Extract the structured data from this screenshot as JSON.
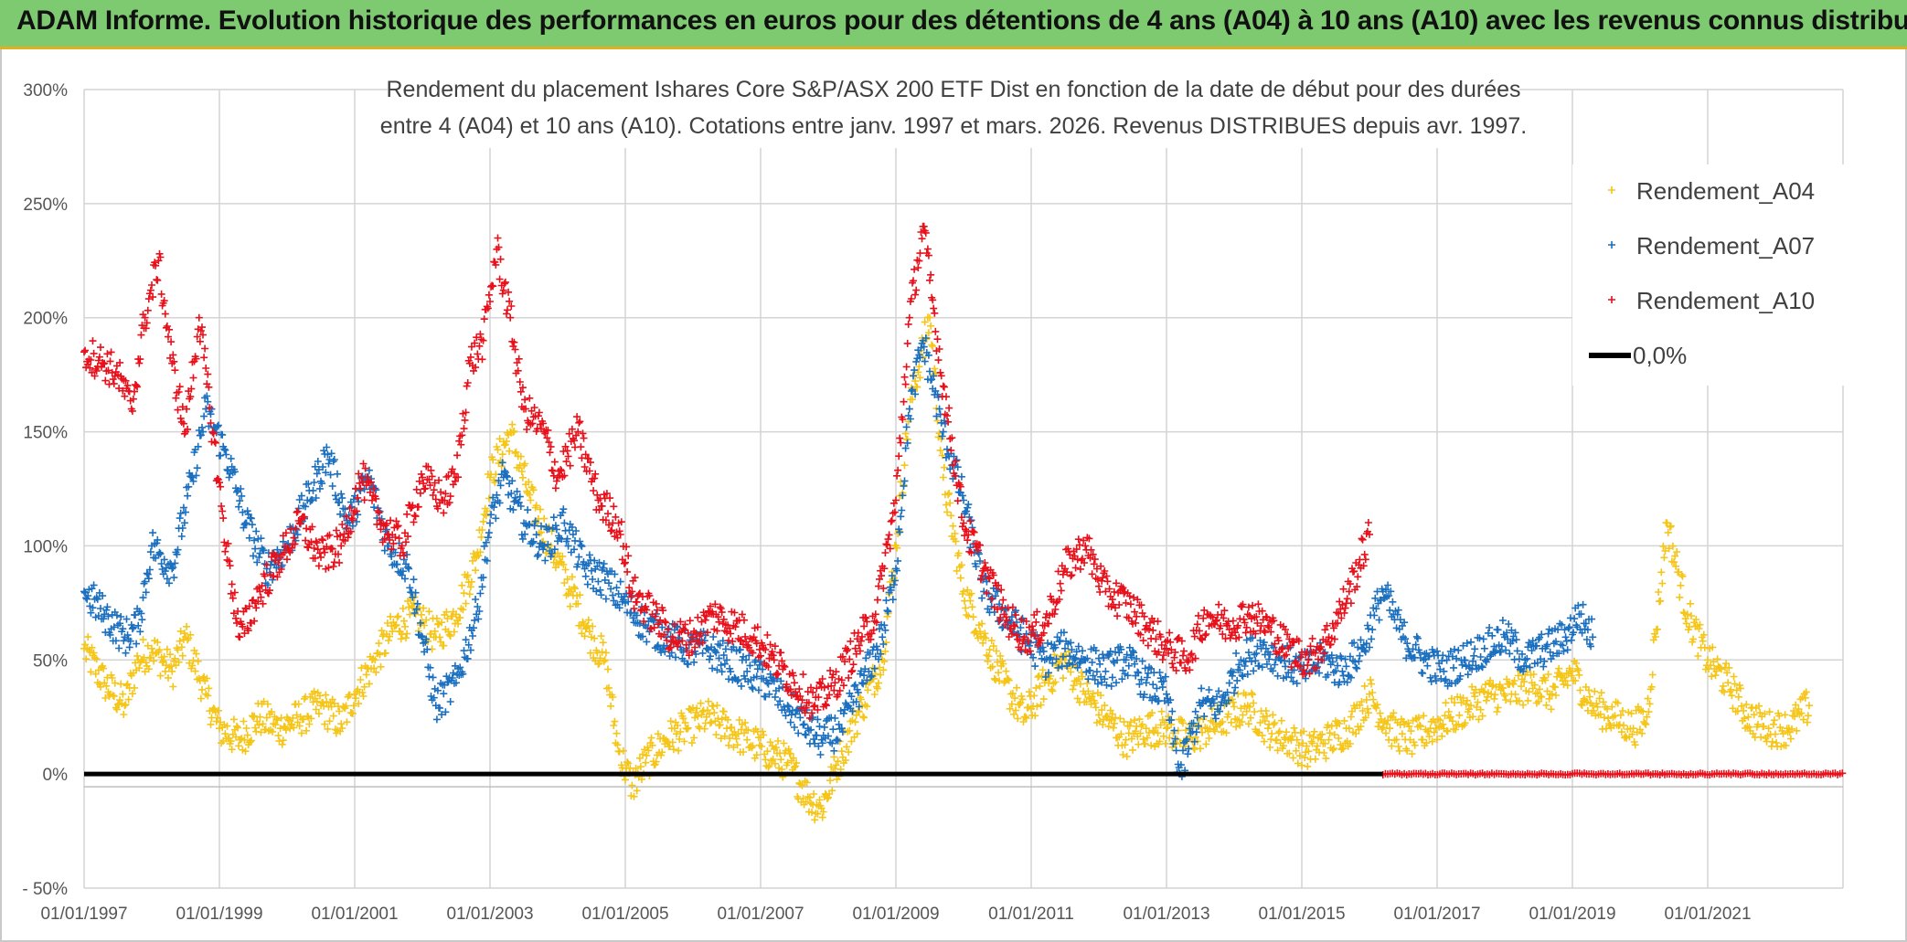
{
  "header": {
    "title": "ADAM Informe. Evolution historique des performances en euros pour des détentions de 4 ans (A04) à 10 ans (A10) avec les revenus connus distribués"
  },
  "chart_data": {
    "type": "scatter",
    "title_lines": [
      "Rendement du placement Ishares Core S&P/ASX 200 ETF Dist en fonction de la date de début pour des durées",
      "entre 4 (A04) et 10 ans (A10). Cotations entre janv. 1997 et mars. 2026. Revenus DISTRIBUES depuis avr. 1997."
    ],
    "x_unit": "start date (decimal year)",
    "xlim": [
      1997.0,
      2023.0
    ],
    "x_ticks": [
      1997,
      1999,
      2001,
      2003,
      2005,
      2007,
      2009,
      2011,
      2013,
      2015,
      2017,
      2019,
      2021
    ],
    "x_tick_labels": [
      "01/01/1997",
      "01/01/1999",
      "01/01/2001",
      "01/01/2003",
      "01/01/2005",
      "01/01/2007",
      "01/01/2009",
      "01/01/2011",
      "01/01/2013",
      "01/01/2015",
      "01/01/2017",
      "01/01/2019",
      "01/01/2021"
    ],
    "ylim": [
      -50,
      300
    ],
    "y_ticks": [
      -50,
      0,
      50,
      100,
      150,
      200,
      250,
      300
    ],
    "y_tick_labels": [
      "- 50%",
      "0%",
      "50%",
      "100%",
      "150%",
      "200%",
      "250%",
      "300%"
    ],
    "grid": true,
    "legend_position": "top-right",
    "legend": [
      "Rendement_A04",
      "Rendement_A07",
      "Rendement_A10",
      "0,0%"
    ],
    "series": [
      {
        "name": "Rendement_A04",
        "color": "#f5c518",
        "marker": "plus",
        "x": [
          1997.0,
          1997.3,
          1997.6,
          1997.8,
          1998.0,
          1998.3,
          1998.5,
          1998.8,
          1999.0,
          1999.3,
          1999.6,
          1999.9,
          2000.2,
          2000.5,
          2000.8,
          2001.0,
          2001.3,
          2001.6,
          2001.9,
          2002.2,
          2002.5,
          2002.8,
          2003.0,
          2003.3,
          2003.6,
          2003.9,
          2004.2,
          2004.5,
          2004.7,
          2004.9,
          2005.1,
          2005.3,
          2005.6,
          2005.9,
          2006.2,
          2006.5,
          2006.8,
          2007.1,
          2007.4,
          2007.7,
          2007.9,
          2008.2,
          2008.5,
          2008.8,
          2009.0,
          2009.2,
          2009.5,
          2009.7,
          2010.0,
          2010.3,
          2010.6,
          2010.9,
          2011.2,
          2011.5,
          2011.8,
          2012.1,
          2012.4,
          2012.7,
          2013.0,
          2013.3,
          2013.6,
          2013.9,
          2014.2,
          2014.5,
          2014.8,
          2015.1,
          2015.4,
          2015.7,
          2016.0,
          2016.3,
          2016.6,
          2016.9,
          2017.2,
          2017.5,
          2017.8,
          2018.1,
          2018.4,
          2018.7,
          2019.0,
          2019.3,
          2019.6,
          2019.9,
          2020.1,
          2020.4,
          2020.7,
          2021.0,
          2021.3,
          2021.6,
          2021.9,
          2022.2,
          2022.5
        ],
        "y": [
          55,
          40,
          30,
          50,
          55,
          45,
          60,
          35,
          20,
          15,
          25,
          20,
          25,
          30,
          22,
          35,
          50,
          65,
          70,
          60,
          70,
          95,
          130,
          150,
          120,
          100,
          80,
          60,
          50,
          10,
          -5,
          5,
          15,
          20,
          25,
          20,
          15,
          10,
          5,
          -10,
          -15,
          10,
          30,
          50,
          100,
          160,
          200,
          130,
          80,
          60,
          40,
          25,
          40,
          50,
          35,
          25,
          15,
          20,
          20,
          15,
          20,
          25,
          30,
          20,
          15,
          10,
          15,
          20,
          35,
          20,
          15,
          20,
          25,
          30,
          35,
          35,
          40,
          35,
          45,
          30,
          25,
          20,
          25,
          110,
          70,
          50,
          40,
          25,
          20,
          20,
          30
        ]
      },
      {
        "name": "Rendement_A07",
        "color": "#1b6fbf",
        "marker": "plus",
        "x": [
          1997.0,
          1997.3,
          1997.6,
          1997.8,
          1998.0,
          1998.3,
          1998.6,
          1998.8,
          1999.1,
          1999.4,
          1999.7,
          2000.0,
          2000.3,
          2000.6,
          2000.9,
          2001.2,
          2001.5,
          2001.8,
          2002.0,
          2002.2,
          2002.5,
          2002.8,
          2003.0,
          2003.2,
          2003.5,
          2003.8,
          2004.1,
          2004.4,
          2004.7,
          2005.0,
          2005.3,
          2005.6,
          2005.9,
          2006.2,
          2006.5,
          2006.8,
          2007.1,
          2007.4,
          2007.7,
          2007.9,
          2008.2,
          2008.5,
          2008.8,
          2009.0,
          2009.2,
          2009.4,
          2009.7,
          2010.0,
          2010.3,
          2010.6,
          2010.9,
          2011.2,
          2011.5,
          2011.8,
          2012.1,
          2012.4,
          2012.7,
          2013.0,
          2013.2,
          2013.5,
          2013.8,
          2014.1,
          2014.4,
          2014.7,
          2015.0,
          2015.3,
          2015.6,
          2015.9,
          2016.2,
          2016.5,
          2016.8,
          2017.1,
          2017.4,
          2017.7,
          2018.0,
          2018.3,
          2018.6,
          2018.9,
          2019.1,
          2019.3
        ],
        "y": [
          80,
          70,
          60,
          65,
          100,
          90,
          130,
          160,
          140,
          110,
          90,
          100,
          120,
          140,
          110,
          130,
          100,
          90,
          60,
          30,
          40,
          70,
          110,
          130,
          110,
          100,
          110,
          90,
          85,
          75,
          65,
          60,
          55,
          55,
          50,
          45,
          40,
          30,
          20,
          15,
          20,
          40,
          60,
          90,
          160,
          190,
          150,
          120,
          80,
          70,
          60,
          50,
          55,
          50,
          45,
          50,
          40,
          35,
          0,
          30,
          30,
          50,
          55,
          50,
          45,
          50,
          45,
          55,
          80,
          60,
          50,
          45,
          50,
          55,
          60,
          50,
          55,
          60,
          70,
          60
        ]
      },
      {
        "name": "Rendement_A10",
        "color": "#e8101a",
        "marker": "plus",
        "x": [
          1997.0,
          1997.3,
          1997.5,
          1997.7,
          1997.9,
          1998.1,
          1998.3,
          1998.5,
          1998.7,
          1998.9,
          1999.1,
          1999.3,
          1999.6,
          1999.9,
          2000.2,
          2000.5,
          2000.8,
          2001.1,
          2001.4,
          2001.7,
          2002.0,
          2002.3,
          2002.5,
          2002.7,
          2002.9,
          2003.1,
          2003.3,
          2003.5,
          2003.8,
          2004.0,
          2004.3,
          2004.6,
          2004.9,
          2005.1,
          2005.4,
          2005.7,
          2006.0,
          2006.3,
          2006.6,
          2006.9,
          2007.2,
          2007.5,
          2007.8,
          2008.1,
          2008.4,
          2008.7,
          2009.0,
          2009.2,
          2009.4,
          2009.7,
          2010.0,
          2010.3,
          2010.6,
          2010.9,
          2011.2,
          2011.5,
          2011.8,
          2012.1,
          2012.4,
          2012.7,
          2013.0,
          2013.3,
          2013.6,
          2013.9,
          2014.2,
          2014.5,
          2014.8,
          2015.1,
          2015.4,
          2015.7,
          2016.0
        ],
        "y": [
          185,
          180,
          175,
          160,
          200,
          225,
          180,
          150,
          200,
          150,
          100,
          60,
          80,
          95,
          110,
          95,
          100,
          130,
          110,
          100,
          130,
          120,
          130,
          180,
          190,
          230,
          200,
          160,
          150,
          130,
          150,
          120,
          110,
          80,
          70,
          60,
          60,
          70,
          65,
          60,
          50,
          40,
          30,
          40,
          55,
          70,
          120,
          200,
          240,
          170,
          110,
          90,
          70,
          60,
          65,
          90,
          100,
          80,
          75,
          65,
          55,
          50,
          70,
          65,
          70,
          65,
          55,
          50,
          60,
          80,
          105
        ]
      },
      {
        "name": "0,0%",
        "color": "#000000",
        "marker": "line",
        "x": [
          1997.0,
          2016.2
        ],
        "y": [
          0,
          0
        ]
      }
    ],
    "zero_bands": [
      {
        "series": "Rendement_A10",
        "from": 2016.2,
        "to": 2023.0,
        "y": 0
      }
    ]
  }
}
